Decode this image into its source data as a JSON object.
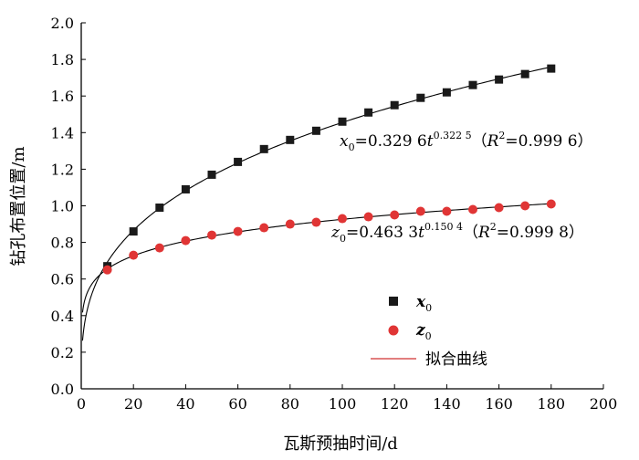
{
  "chart_data": {
    "type": "scatter",
    "xlabel": "瓦斯预抽时间/d",
    "ylabel": "钻孔布置位置/m",
    "xlim": [
      0,
      200
    ],
    "ylim": [
      0,
      2.0
    ],
    "x_ticks": [
      "0",
      "20",
      "40",
      "60",
      "80",
      "100",
      "120",
      "140",
      "160",
      "180",
      "200"
    ],
    "y_ticks": [
      "0.0",
      "0.2",
      "0.4",
      "0.6",
      "0.8",
      "1.0",
      "1.2",
      "1.4",
      "1.6",
      "1.8",
      "2.0"
    ],
    "grid": false,
    "legend_position": "bottom-center",
    "x": [
      10,
      20,
      30,
      40,
      50,
      60,
      70,
      80,
      90,
      100,
      110,
      120,
      130,
      140,
      150,
      160,
      170,
      180
    ],
    "series": [
      {
        "name": "x0",
        "marker": "square",
        "color": "#1a1a1a",
        "fit_color": "#000000",
        "fit": {
          "a": 0.3296,
          "b": 0.3225
        },
        "values": [
          0.67,
          0.86,
          0.99,
          1.09,
          1.17,
          1.24,
          1.31,
          1.36,
          1.41,
          1.46,
          1.51,
          1.55,
          1.59,
          1.62,
          1.66,
          1.69,
          1.72,
          1.75
        ],
        "equation": {
          "var": "x",
          "sub": "0",
          "coef": "=0.329 6",
          "t": "t",
          "exp": "0.322 5",
          "open": "（",
          "r": "R",
          "r_exp": "2",
          "r_val": "=0.999 6",
          "close": "）"
        }
      },
      {
        "name": "z0",
        "marker": "circle",
        "color": "#e03535",
        "fit_color": "#000000",
        "fit": {
          "a": 0.4633,
          "b": 0.1504
        },
        "values": [
          0.65,
          0.73,
          0.77,
          0.81,
          0.84,
          0.86,
          0.88,
          0.9,
          0.91,
          0.93,
          0.94,
          0.95,
          0.97,
          0.97,
          0.98,
          0.99,
          1.0,
          1.01
        ],
        "equation": {
          "var": "z",
          "sub": "0",
          "coef": "=0.463 3",
          "t": "t",
          "exp": "0.150 4",
          "open": "（",
          "r": "R",
          "r_exp": "2",
          "r_val": "=0.999 8",
          "close": "）"
        }
      }
    ],
    "legend": {
      "x0_var": "x",
      "x0_sub": "0",
      "z0_var": "z",
      "z0_sub": "0",
      "fit_label": "拟合曲线",
      "fit_line_color": "#d03030"
    }
  }
}
